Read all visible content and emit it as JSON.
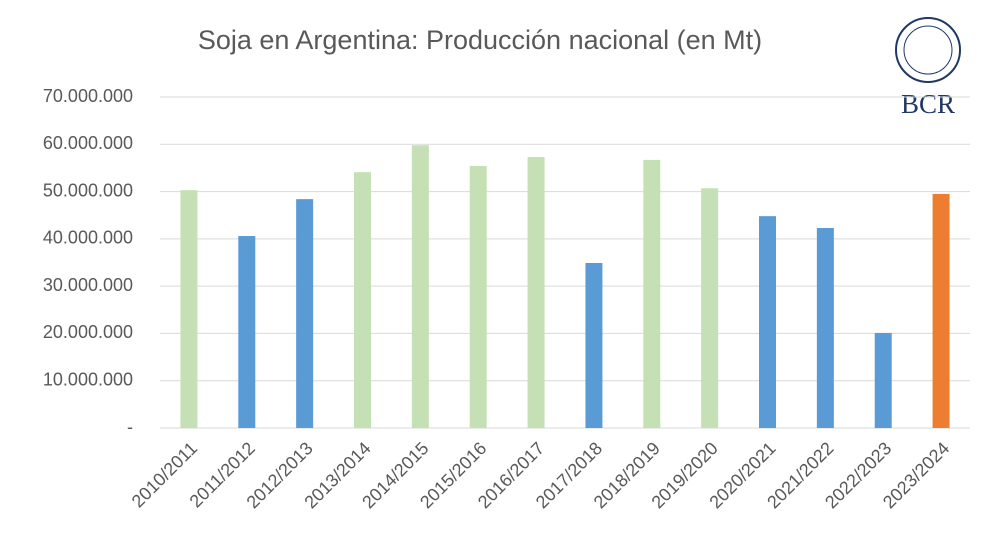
{
  "chart_data": {
    "type": "bar",
    "title": "Soja en Argentina: Producción nacional (en Mt)",
    "logo_text": "BCR",
    "categories": [
      "2010/2011",
      "2011/2012",
      "2012/2013",
      "2013/2014",
      "2014/2015",
      "2015/2016",
      "2016/2017",
      "2017/2018",
      "2018/2019",
      "2019/2020",
      "2020/2021",
      "2021/2022",
      "2022/2023",
      "2023/2024"
    ],
    "values": [
      50300000,
      40600000,
      48400000,
      54100000,
      59800000,
      55400000,
      57300000,
      34900000,
      56700000,
      50700000,
      44800000,
      42300000,
      20100000,
      49500000
    ],
    "colors": [
      "#c5e0b4",
      "#5b9bd5",
      "#5b9bd5",
      "#c5e0b4",
      "#c5e0b4",
      "#c5e0b4",
      "#c5e0b4",
      "#5b9bd5",
      "#c5e0b4",
      "#c5e0b4",
      "#5b9bd5",
      "#5b9bd5",
      "#5b9bd5",
      "#ed7d31"
    ],
    "ylim": [
      0,
      70000000
    ],
    "yticks": [
      {
        "value": 0,
        "label": "-"
      },
      {
        "value": 10000000,
        "label": "10.000.000"
      },
      {
        "value": 20000000,
        "label": "20.000.000"
      },
      {
        "value": 30000000,
        "label": "30.000.000"
      },
      {
        "value": 40000000,
        "label": "40.000.000"
      },
      {
        "value": 50000000,
        "label": "50.000.000"
      },
      {
        "value": 60000000,
        "label": "60.000.000"
      },
      {
        "value": 70000000,
        "label": "70.000.000"
      }
    ],
    "grid": true
  }
}
